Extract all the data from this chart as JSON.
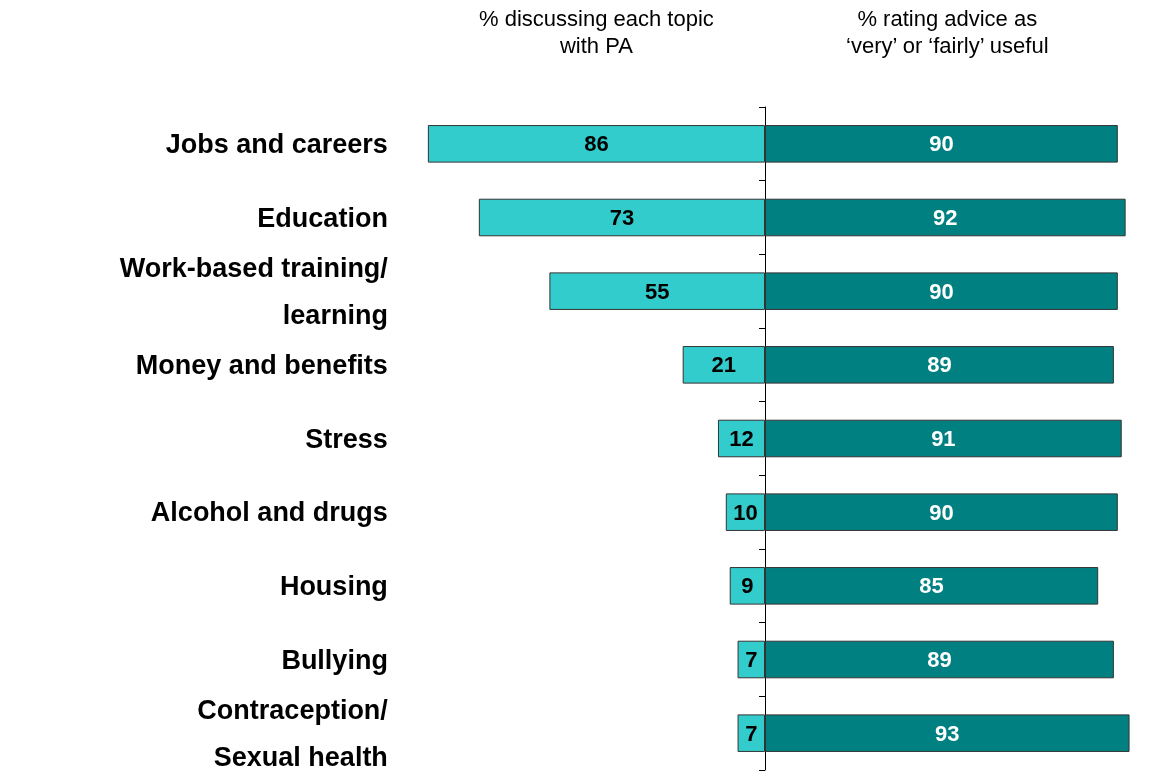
{
  "chart_data": [
    {
      "type": "bar",
      "orientation": "horizontal",
      "categories": [
        "Jobs and careers",
        "Education",
        "Work-based training/\nlearning",
        "Money and benefits",
        "Stress",
        "Alcohol and drugs",
        "Housing",
        "Bullying",
        "Contraception/\nSexual health"
      ],
      "xlabel": "% discussing each topic\nwith PA",
      "xlim": [
        86,
        0
      ],
      "series": [
        {
          "color": "#33cccc",
          "values": [
            86,
            73,
            55,
            21,
            12,
            10,
            9,
            7,
            7
          ]
        }
      ],
      "data_labels": true,
      "tick_labels": "y"
    },
    {
      "type": "bar",
      "orientation": "horizontal",
      "categories": [
        null,
        null,
        null,
        null,
        null,
        null,
        null,
        null,
        null
      ],
      "xlabel": "% rating advice as\n‘very’ or ‘fairly’ useful",
      "xlim": [
        0,
        93
      ],
      "series": [
        {
          "color": "#008080",
          "values": [
            90,
            92,
            90,
            89,
            91,
            90,
            85,
            89,
            93
          ]
        }
      ],
      "data_labels": true,
      "tick_labels": false
    }
  ]
}
